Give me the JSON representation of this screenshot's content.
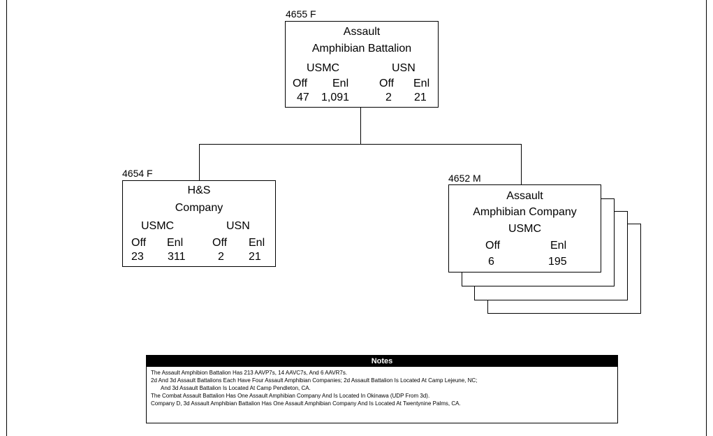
{
  "root": {
    "code": "4655 F",
    "title_line1": "Assault",
    "title_line2": "Amphibian Battalion",
    "usmc": "USMC",
    "usn": "USN",
    "off1": "Off",
    "enl1": "Enl",
    "off2": "Off",
    "enl2": "Enl",
    "usmc_off": "47",
    "usmc_enl": "1,091",
    "usn_off": "2",
    "usn_enl": "21"
  },
  "hs": {
    "code": "4654 F",
    "title_line1": "H&S",
    "title_line2": "Company",
    "usmc": "USMC",
    "usn": "USN",
    "off1": "Off",
    "enl1": "Enl",
    "off2": "Off",
    "enl2": "Enl",
    "usmc_off": "23",
    "usmc_enl": "311",
    "usn_off": "2",
    "usn_enl": "21"
  },
  "company": {
    "code": "4652 M",
    "title_line1": "Assault",
    "title_line2": "Amphibian Company",
    "usmc": "USMC",
    "off": "Off",
    "enl": "Enl",
    "usmc_off": "6",
    "usmc_enl": "195"
  },
  "notes": {
    "heading": "Notes",
    "items": [
      "The Assault Amphibion Battalion Has 213 AAVP7s, 14 AAVC7s, And 6 AAVR7s.",
      "2d And 3d Assault Battalions Each Have Four Assault Amphibian Companies; 2d Assault Battalion Is Located At Camp Lejeune, NC;",
      "And 3d Assault Battalion Is Located At Camp Pendleton, CA.",
      "The Combat Assault Battalion Has One Assault Amphibian Company And Is Located In Okinawa (UDP From 3d).",
      "Company D, 3d Assault Amphibian Battalion Has One Assault Amphibian Company And Is Located At Twentynine Palms, CA."
    ]
  }
}
